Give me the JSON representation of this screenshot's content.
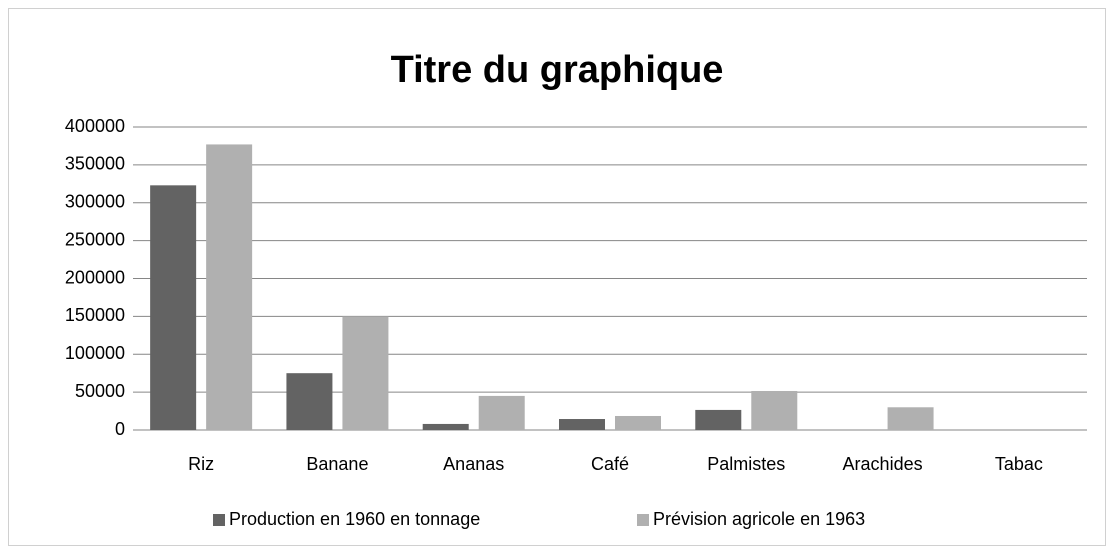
{
  "chart_data": {
    "type": "bar",
    "title": "Titre du graphique",
    "categories": [
      "Riz",
      "Banane",
      "Ananas",
      "Café",
      "Palmistes",
      "Arachides",
      "Tabac"
    ],
    "series": [
      {
        "name": "Production en 1960 en tonnage",
        "color": "#636363",
        "values": [
          323000,
          75000,
          8000,
          14500,
          26500,
          0,
          0
        ]
      },
      {
        "name": "Prévision agricole en 1963",
        "color": "#b0b0b0",
        "values": [
          377000,
          150000,
          45000,
          18500,
          51500,
          30000,
          0
        ]
      }
    ],
    "ylim": [
      0,
      400000
    ],
    "yticks": [
      0,
      50000,
      100000,
      150000,
      200000,
      250000,
      300000,
      350000,
      400000
    ],
    "grid": true,
    "legend": "bottom"
  }
}
